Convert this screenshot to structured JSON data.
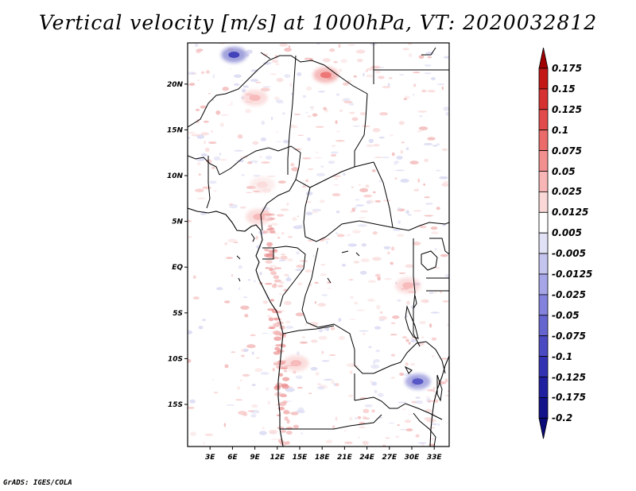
{
  "title": "Vertical velocity [m/s] at 1000hPa, VT: 2020032812",
  "footer": "GrADS: IGES/COLA",
  "map": {
    "lon_range": [
      0,
      35
    ],
    "lat_range": [
      -19.6,
      24.5
    ],
    "lat_ticks": [
      {
        "value": 20,
        "label": "20N"
      },
      {
        "value": 15,
        "label": "15N"
      },
      {
        "value": 10,
        "label": "10N"
      },
      {
        "value": 5,
        "label": "5N"
      },
      {
        "value": 0,
        "label": "EQ"
      },
      {
        "value": -5,
        "label": "5S"
      },
      {
        "value": -10,
        "label": "10S"
      },
      {
        "value": -15,
        "label": "15S"
      }
    ],
    "lon_ticks": [
      {
        "value": 3,
        "label": "3E"
      },
      {
        "value": 6,
        "label": "6E"
      },
      {
        "value": 9,
        "label": "9E"
      },
      {
        "value": 12,
        "label": "12E"
      },
      {
        "value": 15,
        "label": "15E"
      },
      {
        "value": 18,
        "label": "18E"
      },
      {
        "value": 21,
        "label": "21E"
      },
      {
        "value": 24,
        "label": "24E"
      },
      {
        "value": 27,
        "label": "27E"
      },
      {
        "value": 30,
        "label": "30E"
      },
      {
        "value": 33,
        "label": "33E"
      }
    ],
    "features": [
      {
        "lon": 6.2,
        "lat": 23.2,
        "value": -0.1,
        "name": "feature-hoggar-blue"
      },
      {
        "lon": 18.5,
        "lat": 21.0,
        "value": 0.1,
        "name": "feature-tibesti-red"
      },
      {
        "lon": 9.0,
        "lat": 18.5,
        "value": 0.05,
        "name": "feature-air-red"
      },
      {
        "lon": 10.0,
        "lat": 9.0,
        "value": 0.025,
        "name": "feature-jos-red"
      },
      {
        "lon": 9.5,
        "lat": 5.5,
        "value": 0.05,
        "name": "feature-cameroon-red"
      },
      {
        "lon": 14.5,
        "lat": -10.5,
        "value": 0.05,
        "name": "feature-angola-red"
      },
      {
        "lon": 30.8,
        "lat": -12.5,
        "value": -0.075,
        "name": "feature-malawi-blue"
      },
      {
        "lon": 29.5,
        "lat": -2.0,
        "value": 0.05,
        "name": "feature-rift-red"
      }
    ]
  },
  "legend": {
    "colors": [
      "#a00000",
      "#c31616",
      "#d73232",
      "#e24b4b",
      "#eb6b6b",
      "#f29090",
      "#f7b5b5",
      "#fad8d8",
      "#ffffff",
      "#e2e2f6",
      "#c4c4ef",
      "#a5a5e8",
      "#8383dd",
      "#6565d0",
      "#4a4ac2",
      "#3232b3",
      "#1f1fa0",
      "#12128a",
      "#0a0a78"
    ],
    "labels": [
      "0.175",
      "0.15",
      "0.125",
      "0.1",
      "0.075",
      "0.05",
      "0.025",
      "0.0125",
      "0.005",
      "-0.005",
      "-0.0125",
      "-0.025",
      "-0.05",
      "-0.075",
      "-0.1",
      "-0.125",
      "-0.175",
      "-0.2"
    ]
  }
}
